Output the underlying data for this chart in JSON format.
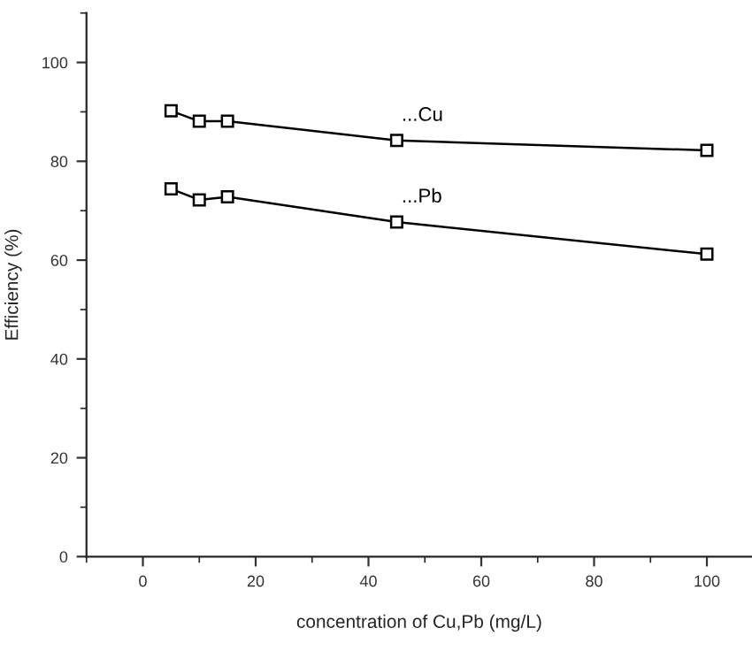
{
  "chart_data": {
    "type": "line",
    "xlabel": "concentration of Cu,Pb (mg/L)",
    "ylabel": "Efficiency (%)",
    "x": [
      5,
      10,
      15,
      45,
      100
    ],
    "series": [
      {
        "name": "...Cu",
        "color": "#000000",
        "values": [
          90.2,
          88.1,
          88.1,
          84.2,
          82.2
        ]
      },
      {
        "name": "...Pb",
        "color": "#000000",
        "values": [
          74.4,
          72.2,
          72.8,
          67.7,
          61.2
        ]
      }
    ],
    "xlim": [
      -10,
      108
    ],
    "ylim": [
      0,
      110
    ],
    "xticks": [
      0,
      20,
      40,
      60,
      80,
      100
    ],
    "yticks": [
      0,
      20,
      40,
      60,
      80,
      100
    ],
    "marker": "square",
    "line_style": "solid",
    "grid": false,
    "legend": false
  }
}
